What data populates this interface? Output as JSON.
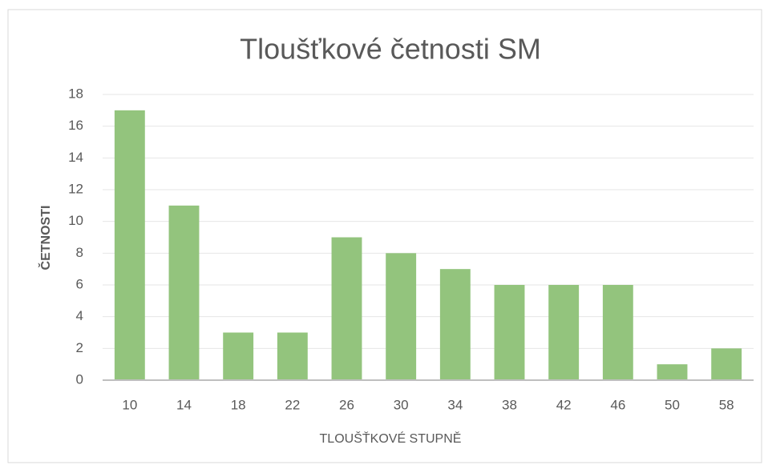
{
  "chart_data": {
    "type": "bar",
    "title": "Tloušťkové četnosti SM",
    "x_label": "TLOUŠŤKOVÉ STUPNĚ",
    "y_label": "ČETNOSTI",
    "categories": [
      "10",
      "14",
      "18",
      "22",
      "26",
      "30",
      "34",
      "38",
      "42",
      "46",
      "50",
      "58"
    ],
    "values": [
      17,
      11,
      3,
      3,
      9,
      8,
      7,
      6,
      6,
      6,
      1,
      2
    ],
    "color": "#93c47d",
    "ylim": [
      0,
      18
    ],
    "yticks": [
      0,
      2,
      4,
      6,
      8,
      10,
      12,
      14,
      16,
      18
    ],
    "grid": true
  }
}
